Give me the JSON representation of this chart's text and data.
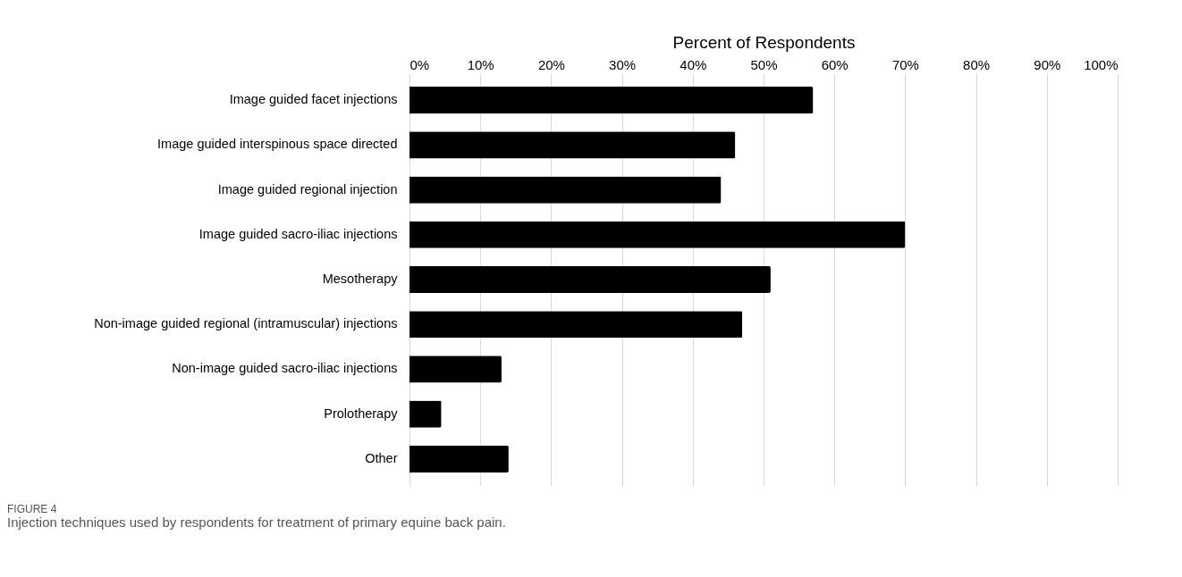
{
  "chart_data": {
    "type": "bar",
    "orientation": "horizontal",
    "xlabel": "Percent of Respondents",
    "categories": [
      "Image guided facet injections",
      "Image guided interspinous space directed",
      "Image guided regional injection",
      "Image guided sacro-iliac injections",
      "Mesotherapy",
      "Non-image guided regional (intramuscular) injections",
      "Non-image guided sacro-iliac injections",
      "Prolotherapy",
      "Other"
    ],
    "values": [
      57,
      46,
      44,
      70,
      51,
      47,
      13,
      4.5,
      14
    ],
    "color": "#000000",
    "xlim": [
      0,
      100
    ],
    "xticks": [
      {
        "value": 0,
        "label": "0%"
      },
      {
        "value": 10,
        "label": "10%"
      },
      {
        "value": 20,
        "label": "20%"
      },
      {
        "value": 30,
        "label": "30%"
      },
      {
        "value": 40,
        "label": "40%"
      },
      {
        "value": 50,
        "label": "50%"
      },
      {
        "value": 60,
        "label": "60%"
      },
      {
        "value": 70,
        "label": "70%"
      },
      {
        "value": 80,
        "label": "80%"
      },
      {
        "value": 90,
        "label": "90%"
      },
      {
        "value": 100,
        "label": "100%"
      }
    ],
    "grid": "x",
    "annotations": [
      "FIGURE 4",
      "Injection techniques used by respondents for treatment of primary equine back pain."
    ]
  }
}
